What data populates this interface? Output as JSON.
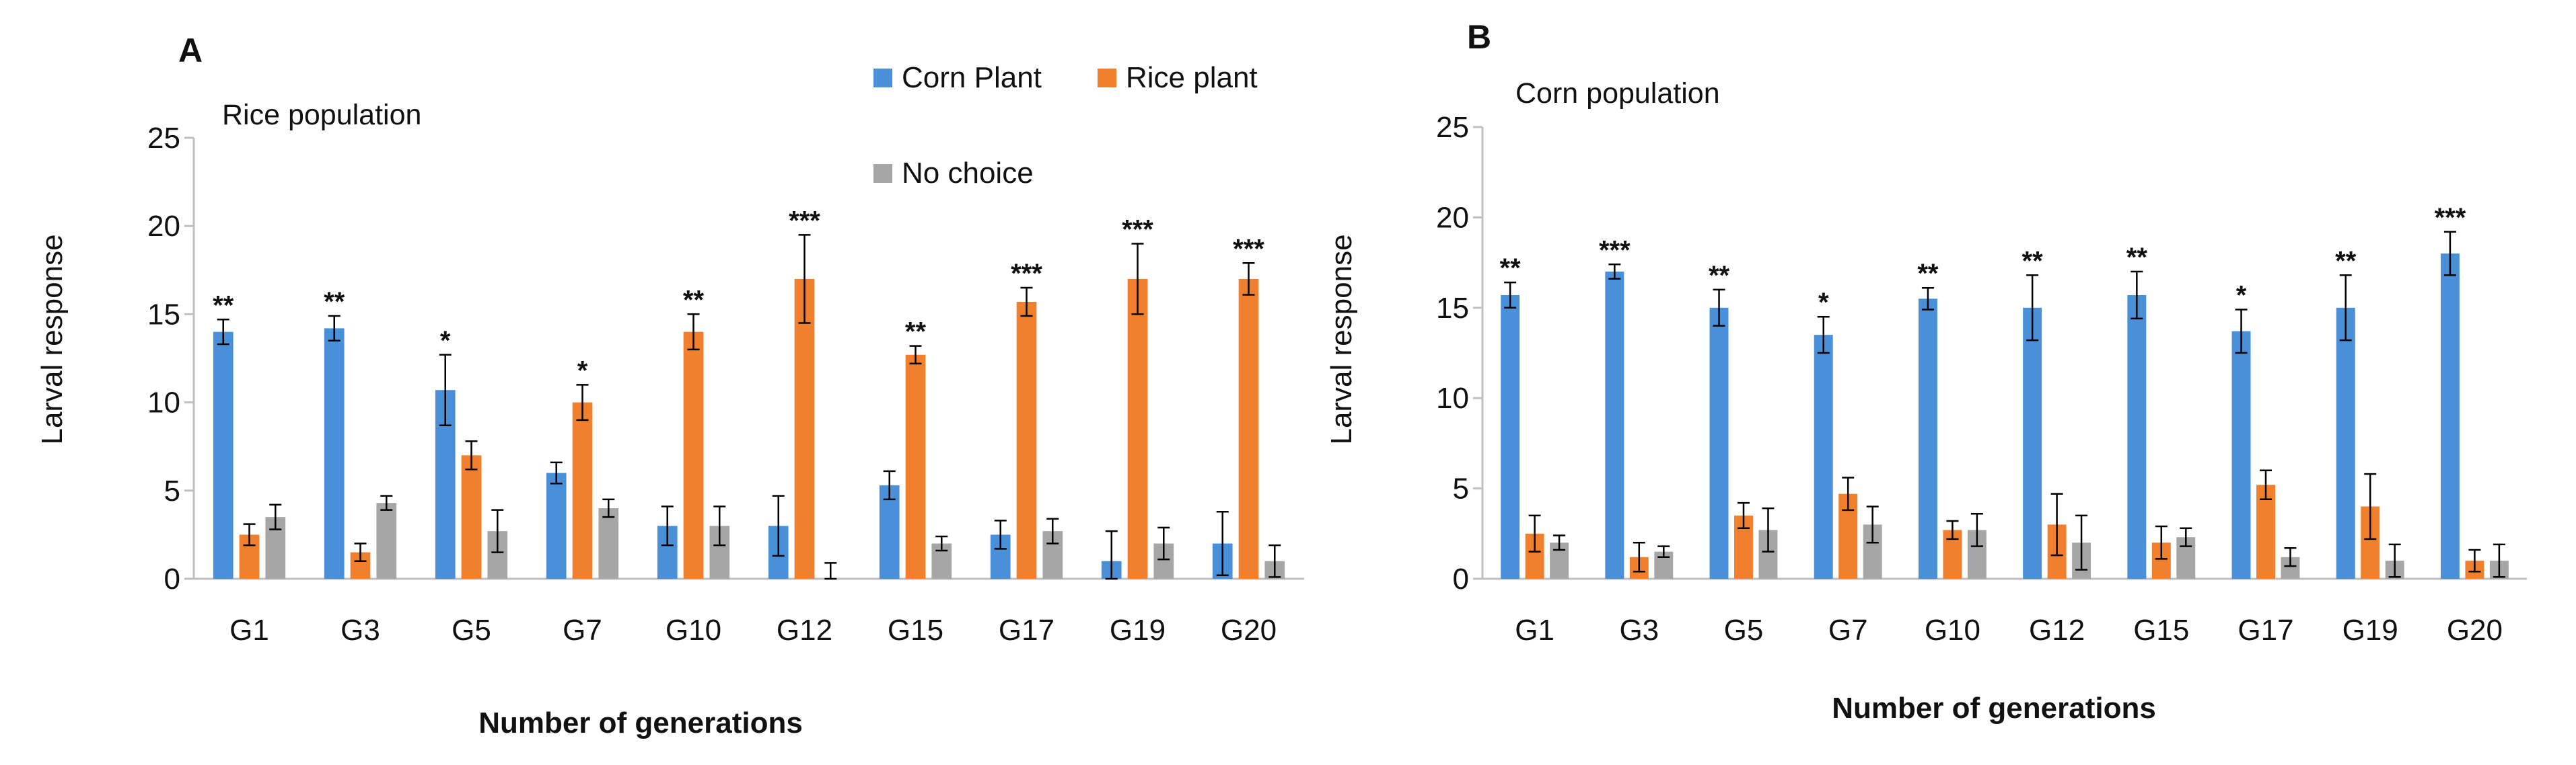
{
  "chart_data": [
    {
      "type": "bar",
      "panel_letter": "A",
      "title": "Rice population",
      "xlabel": "Number of generations",
      "ylabel": "Larval response",
      "ylim": [
        0,
        25
      ],
      "yticks": [
        0,
        5,
        10,
        15,
        20,
        25
      ],
      "grid": false,
      "legend": {
        "placement": "top-right",
        "entries": [
          {
            "name": "Corn Plant",
            "color": "#4a90d9"
          },
          {
            "name": "Rice plant",
            "color": "#f07f2e"
          },
          {
            "name": "No choice",
            "color": "#a6a6a6"
          }
        ]
      },
      "categories": [
        "G1",
        "G3",
        "G5",
        "G7",
        "G10",
        "G12",
        "G15",
        "G17",
        "G19",
        "G20"
      ],
      "series": [
        {
          "name": "Corn Plant",
          "color": "#4a90d9",
          "values": [
            14,
            14.2,
            10.7,
            6,
            3,
            3,
            5.3,
            2.5,
            1,
            2
          ],
          "errors": [
            0.7,
            0.7,
            2,
            0.6,
            1.1,
            1.7,
            0.8,
            0.8,
            1.7,
            1.8
          ]
        },
        {
          "name": "Rice plant",
          "color": "#f07f2e",
          "values": [
            2.5,
            1.5,
            7,
            10,
            14,
            17,
            12.7,
            15.7,
            17,
            17
          ],
          "errors": [
            0.6,
            0.5,
            0.8,
            1,
            1,
            2.5,
            0.5,
            0.8,
            2,
            0.9
          ]
        },
        {
          "name": "No choice",
          "color": "#a6a6a6",
          "values": [
            3.5,
            4.3,
            2.7,
            4,
            3,
            0,
            2,
            2.7,
            2,
            1
          ],
          "errors": [
            0.7,
            0.4,
            1.2,
            0.5,
            1.1,
            0.9,
            0.4,
            0.7,
            0.9,
            0.9
          ]
        }
      ],
      "significance": [
        "**",
        "**",
        "*",
        "*",
        "**",
        "***",
        "**",
        "***",
        "***",
        "***"
      ],
      "significance_series": [
        0,
        0,
        0,
        1,
        1,
        1,
        1,
        1,
        1,
        1
      ]
    },
    {
      "type": "bar",
      "panel_letter": "B",
      "title": "Corn population",
      "xlabel": "Number of generations",
      "ylabel": "Larval response",
      "ylim": [
        0,
        25
      ],
      "yticks": [
        0,
        5,
        10,
        15,
        20,
        25
      ],
      "grid": false,
      "categories": [
        "G1",
        "G3",
        "G5",
        "G7",
        "G10",
        "G12",
        "G15",
        "G17",
        "G19",
        "G20"
      ],
      "series": [
        {
          "name": "Corn Plant",
          "color": "#4a90d9",
          "values": [
            15.7,
            17,
            15,
            13.5,
            15.5,
            15,
            15.7,
            13.7,
            15,
            18
          ],
          "errors": [
            0.7,
            0.4,
            1,
            1,
            0.6,
            1.8,
            1.3,
            1.2,
            1.8,
            1.2
          ]
        },
        {
          "name": "Rice plant",
          "color": "#f07f2e",
          "values": [
            2.5,
            1.2,
            3.5,
            4.7,
            2.7,
            3,
            2,
            5.2,
            4,
            1
          ],
          "errors": [
            1,
            0.8,
            0.7,
            0.9,
            0.5,
            1.7,
            0.9,
            0.8,
            1.8,
            0.6
          ]
        },
        {
          "name": "No choice",
          "color": "#a6a6a6",
          "values": [
            2,
            1.5,
            2.7,
            3,
            2.7,
            2,
            2.3,
            1.2,
            1,
            1
          ],
          "errors": [
            0.4,
            0.3,
            1.2,
            1,
            0.9,
            1.5,
            0.5,
            0.5,
            0.9,
            0.9
          ]
        }
      ],
      "significance": [
        "**",
        "***",
        "**",
        "*",
        "**",
        "**",
        "**",
        "*",
        "**",
        "***"
      ],
      "significance_series": [
        0,
        0,
        0,
        0,
        0,
        0,
        0,
        0,
        0,
        0
      ]
    }
  ]
}
